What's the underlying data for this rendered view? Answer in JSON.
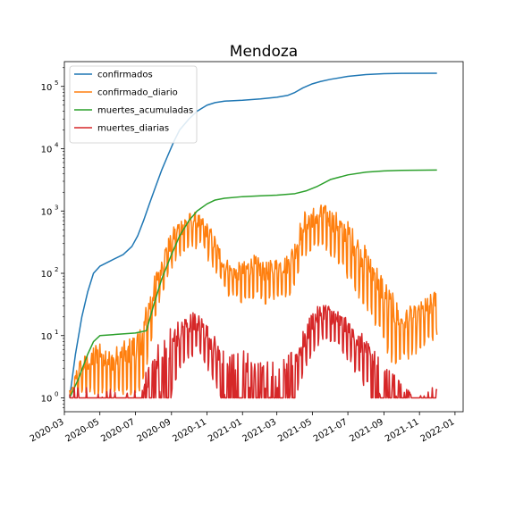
{
  "chart_data": {
    "type": "line",
    "title": "Mendoza",
    "xlabel": "",
    "ylabel": "",
    "x_scale": "date",
    "y_scale": "log",
    "xlim": [
      "2020-03-01",
      "2022-01-15"
    ],
    "ylim": [
      0.6,
      250000
    ],
    "grid": false,
    "legend_position": "top-left",
    "x_ticks": [
      "2020-03-01",
      "2020-05-01",
      "2020-07-01",
      "2020-09-01",
      "2020-11-01",
      "2021-01-01",
      "2021-03-01",
      "2021-05-01",
      "2021-07-01",
      "2021-09-01",
      "2021-11-01",
      "2022-01-01"
    ],
    "x_tick_labels": [
      "2020-03",
      "2020-05",
      "2020-07",
      "2020-09",
      "2020-11",
      "2021-01",
      "2021-03",
      "2021-05",
      "2021-07",
      "2021-09",
      "2021-11",
      "2022-01"
    ],
    "y_ticks": [
      1,
      10,
      100,
      1000,
      10000,
      100000
    ],
    "y_tick_labels": [
      "10",
      "10",
      "10",
      "10",
      "10",
      "10"
    ],
    "y_tick_exponents": [
      "0",
      "1",
      "2",
      "3",
      "4",
      "5"
    ],
    "series": [
      {
        "name": "confirmados",
        "color": "#1f77b4",
        "style": "smooth",
        "points": [
          [
            "2020-03-10",
            1
          ],
          [
            "2020-03-20",
            5
          ],
          [
            "2020-03-31",
            20
          ],
          [
            "2020-04-10",
            50
          ],
          [
            "2020-04-20",
            100
          ],
          [
            "2020-05-01",
            130
          ],
          [
            "2020-05-20",
            160
          ],
          [
            "2020-06-10",
            200
          ],
          [
            "2020-06-25",
            270
          ],
          [
            "2020-07-05",
            400
          ],
          [
            "2020-07-15",
            700
          ],
          [
            "2020-07-25",
            1300
          ],
          [
            "2020-08-05",
            2500
          ],
          [
            "2020-08-15",
            4500
          ],
          [
            "2020-08-25",
            7500
          ],
          [
            "2020-09-05",
            13000
          ],
          [
            "2020-09-15",
            20000
          ],
          [
            "2020-10-01",
            30000
          ],
          [
            "2020-10-15",
            40000
          ],
          [
            "2020-11-01",
            50000
          ],
          [
            "2020-11-15",
            55000
          ],
          [
            "2020-12-01",
            58000
          ],
          [
            "2021-01-01",
            60000
          ],
          [
            "2021-02-01",
            63000
          ],
          [
            "2021-03-01",
            67000
          ],
          [
            "2021-03-20",
            72000
          ],
          [
            "2021-04-01",
            80000
          ],
          [
            "2021-04-15",
            95000
          ],
          [
            "2021-05-01",
            110000
          ],
          [
            "2021-05-15",
            120000
          ],
          [
            "2021-06-01",
            130000
          ],
          [
            "2021-07-01",
            145000
          ],
          [
            "2021-08-01",
            155000
          ],
          [
            "2021-09-01",
            160000
          ],
          [
            "2021-10-01",
            162000
          ],
          [
            "2021-12-01",
            163000
          ]
        ]
      },
      {
        "name": "confirmado_diario",
        "color": "#ff7f0e",
        "style": "noisy",
        "envelope": [
          [
            "2020-03-10",
            1,
            1
          ],
          [
            "2020-03-25",
            1,
            4
          ],
          [
            "2020-04-15",
            1,
            6
          ],
          [
            "2020-05-01",
            1,
            10
          ],
          [
            "2020-05-20",
            1,
            6
          ],
          [
            "2020-06-10",
            1,
            8
          ],
          [
            "2020-06-25",
            1,
            10
          ],
          [
            "2020-07-10",
            1,
            15
          ],
          [
            "2020-07-25",
            5,
            50
          ],
          [
            "2020-08-10",
            30,
            150
          ],
          [
            "2020-08-25",
            80,
            350
          ],
          [
            "2020-09-10",
            150,
            700
          ],
          [
            "2020-09-25",
            200,
            900
          ],
          [
            "2020-10-10",
            250,
            1000
          ],
          [
            "2020-10-25",
            220,
            800
          ],
          [
            "2020-11-10",
            120,
            500
          ],
          [
            "2020-11-25",
            60,
            250
          ],
          [
            "2020-12-10",
            40,
            150
          ],
          [
            "2021-01-01",
            30,
            150
          ],
          [
            "2021-01-20",
            40,
            200
          ],
          [
            "2021-02-10",
            30,
            150
          ],
          [
            "2021-03-01",
            40,
            180
          ],
          [
            "2021-03-20",
            40,
            200
          ],
          [
            "2021-04-01",
            60,
            350
          ],
          [
            "2021-04-15",
            150,
            1000
          ],
          [
            "2021-05-01",
            200,
            1200
          ],
          [
            "2021-05-20",
            250,
            1300
          ],
          [
            "2021-06-10",
            150,
            1000
          ],
          [
            "2021-07-01",
            80,
            700
          ],
          [
            "2021-07-20",
            40,
            400
          ],
          [
            "2021-08-10",
            20,
            200
          ],
          [
            "2021-08-25",
            10,
            120
          ],
          [
            "2021-09-10",
            4,
            60
          ],
          [
            "2021-09-25",
            3,
            35
          ],
          [
            "2021-10-10",
            4,
            30
          ],
          [
            "2021-10-25",
            5,
            30
          ],
          [
            "2021-11-10",
            6,
            40
          ],
          [
            "2021-11-25",
            8,
            50
          ],
          [
            "2021-12-01",
            10,
            60
          ]
        ]
      },
      {
        "name": "muertes_acumuladas",
        "color": "#2ca02c",
        "style": "smooth",
        "points": [
          [
            "2020-03-10",
            1
          ],
          [
            "2020-03-25",
            2
          ],
          [
            "2020-04-10",
            5
          ],
          [
            "2020-04-20",
            8
          ],
          [
            "2020-05-01",
            10
          ],
          [
            "2020-06-01",
            10.5
          ],
          [
            "2020-07-01",
            11
          ],
          [
            "2020-07-20",
            12
          ],
          [
            "2020-08-01",
            30
          ],
          [
            "2020-08-15",
            80
          ],
          [
            "2020-09-01",
            200
          ],
          [
            "2020-09-15",
            400
          ],
          [
            "2020-10-01",
            700
          ],
          [
            "2020-10-15",
            1000
          ],
          [
            "2020-11-01",
            1300
          ],
          [
            "2020-11-15",
            1500
          ],
          [
            "2020-12-01",
            1600
          ],
          [
            "2021-01-01",
            1700
          ],
          [
            "2021-02-01",
            1750
          ],
          [
            "2021-03-01",
            1800
          ],
          [
            "2021-04-01",
            1900
          ],
          [
            "2021-04-20",
            2100
          ],
          [
            "2021-05-10",
            2500
          ],
          [
            "2021-06-01",
            3200
          ],
          [
            "2021-07-01",
            3800
          ],
          [
            "2021-08-01",
            4200
          ],
          [
            "2021-09-01",
            4400
          ],
          [
            "2021-10-01",
            4500
          ],
          [
            "2021-12-01",
            4550
          ]
        ]
      },
      {
        "name": "muertes_diarias",
        "color": "#d62728",
        "style": "noisy",
        "envelope": [
          [
            "2020-03-10",
            1,
            1
          ],
          [
            "2020-07-10",
            1,
            1
          ],
          [
            "2020-07-20",
            1,
            3
          ],
          [
            "2020-08-01",
            1,
            5
          ],
          [
            "2020-08-15",
            1,
            10
          ],
          [
            "2020-09-01",
            1,
            15
          ],
          [
            "2020-09-20",
            3,
            20
          ],
          [
            "2020-10-10",
            5,
            25
          ],
          [
            "2020-10-25",
            4,
            20
          ],
          [
            "2020-11-10",
            2,
            12
          ],
          [
            "2020-11-25",
            1,
            6
          ],
          [
            "2020-12-15",
            1,
            5
          ],
          [
            "2021-01-01",
            1,
            6
          ],
          [
            "2021-01-20",
            1,
            5
          ],
          [
            "2021-02-10",
            1,
            4
          ],
          [
            "2021-03-01",
            1,
            4
          ],
          [
            "2021-03-20",
            1,
            5
          ],
          [
            "2021-04-01",
            1,
            6
          ],
          [
            "2021-04-15",
            2,
            12
          ],
          [
            "2021-05-01",
            5,
            25
          ],
          [
            "2021-05-20",
            8,
            35
          ],
          [
            "2021-06-10",
            6,
            28
          ],
          [
            "2021-07-01",
            4,
            18
          ],
          [
            "2021-07-20",
            2,
            12
          ],
          [
            "2021-08-10",
            1,
            8
          ],
          [
            "2021-08-25",
            1,
            5
          ],
          [
            "2021-09-10",
            1,
            4
          ],
          [
            "2021-09-25",
            1,
            3
          ],
          [
            "2021-10-05",
            1,
            2
          ],
          [
            "2021-10-20",
            1,
            1
          ],
          [
            "2021-12-01",
            1,
            1
          ]
        ]
      }
    ]
  }
}
